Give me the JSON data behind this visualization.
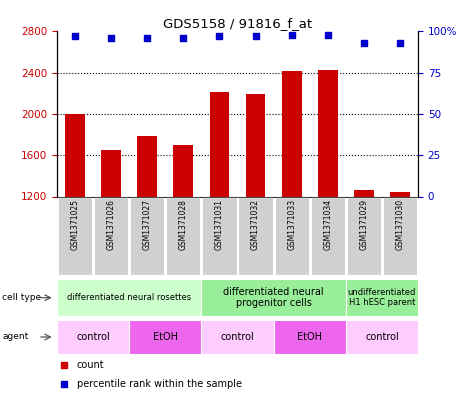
{
  "title": "GDS5158 / 91816_f_at",
  "samples": [
    "GSM1371025",
    "GSM1371026",
    "GSM1371027",
    "GSM1371028",
    "GSM1371031",
    "GSM1371032",
    "GSM1371033",
    "GSM1371034",
    "GSM1371029",
    "GSM1371030"
  ],
  "counts": [
    2000,
    1650,
    1790,
    1700,
    2210,
    2195,
    2420,
    2425,
    1260,
    1240
  ],
  "percentiles": [
    97,
    96,
    96,
    96,
    97,
    97,
    98,
    98,
    93,
    93
  ],
  "ymin": 1200,
  "ymax": 2800,
  "yticks": [
    1200,
    1600,
    2000,
    2400,
    2800
  ],
  "right_yticks": [
    0,
    25,
    50,
    75,
    100
  ],
  "bar_color": "#cc0000",
  "dot_color": "#0000cc",
  "grid_color": "#000000",
  "cell_type_groups": [
    {
      "label": "differentiated neural rosettes",
      "start": 0,
      "end": 4,
      "color": "#ccffcc",
      "fontsize": 6
    },
    {
      "label": "differentiated neural\nprogenitor cells",
      "start": 4,
      "end": 8,
      "color": "#99ee99",
      "fontsize": 7
    },
    {
      "label": "undifferentiated\nH1 hESC parent",
      "start": 8,
      "end": 10,
      "color": "#99ee99",
      "fontsize": 6
    }
  ],
  "agent_groups": [
    {
      "label": "control",
      "start": 0,
      "end": 2,
      "color": "#ffccff"
    },
    {
      "label": "EtOH",
      "start": 2,
      "end": 4,
      "color": "#ee66ee"
    },
    {
      "label": "control",
      "start": 4,
      "end": 6,
      "color": "#ffccff"
    },
    {
      "label": "EtOH",
      "start": 6,
      "end": 8,
      "color": "#ee66ee"
    },
    {
      "label": "control",
      "start": 8,
      "end": 10,
      "color": "#ffccff"
    }
  ],
  "tick_label_color_left": "#cc0000",
  "tick_label_color_right": "#0000cc",
  "background_color": "#ffffff",
  "cell_type_row_label": "cell type",
  "agent_row_label": "agent",
  "legend_count_text": "count",
  "legend_percentile_text": "percentile rank within the sample",
  "legend_count_color": "#cc0000",
  "legend_dot_color": "#0000cc"
}
